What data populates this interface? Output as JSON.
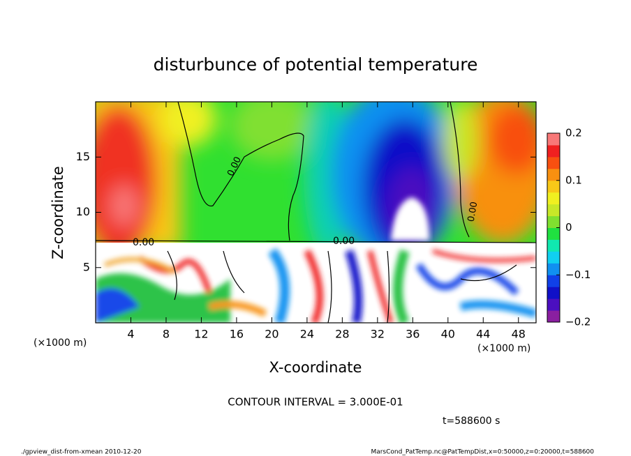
{
  "chart_data": {
    "type": "heatmap",
    "title": "disturbunce of potential temperature",
    "xlabel": "X-coordinate",
    "ylabel": "Z-coordinate",
    "x_unit": "(×1000 m)",
    "xlim": [
      0,
      50
    ],
    "ylim": [
      0,
      20
    ],
    "xticks": [
      4,
      8,
      12,
      16,
      20,
      24,
      28,
      32,
      36,
      40,
      44,
      48
    ],
    "yticks": [
      5,
      10,
      15
    ],
    "colorbar": {
      "lim": [
        -0.2,
        0.2
      ],
      "ticks": [
        0.2,
        0.1,
        0,
        {
          "value": -0.1,
          "label": "−0.1"
        },
        {
          "value": -0.2,
          "label": "−0.2"
        }
      ],
      "colors": [
        "#8a1fa0",
        "#4b0fc0",
        "#1010c8",
        "#1040e8",
        "#1090f0",
        "#10d0f0",
        "#10e8b0",
        "#20e040",
        "#80e030",
        "#c8e828",
        "#f0f020",
        "#f8c818",
        "#f89010",
        "#f85010",
        "#f02020",
        "#f87878"
      ]
    },
    "contour_labels": [
      "0.00",
      "0.00",
      "0.00",
      "0.00"
    ],
    "contour_interval": "CONTOUR INTERVAL = 3.000E-01",
    "time_label": "t=588600 s",
    "footer_left": "./gpview_dist-from-xmean  2010-12-20",
    "footer_right": "MarsCond_PatTemp.nc@PatTempDist,x=0:50000,z=0:20000,t=588600"
  }
}
